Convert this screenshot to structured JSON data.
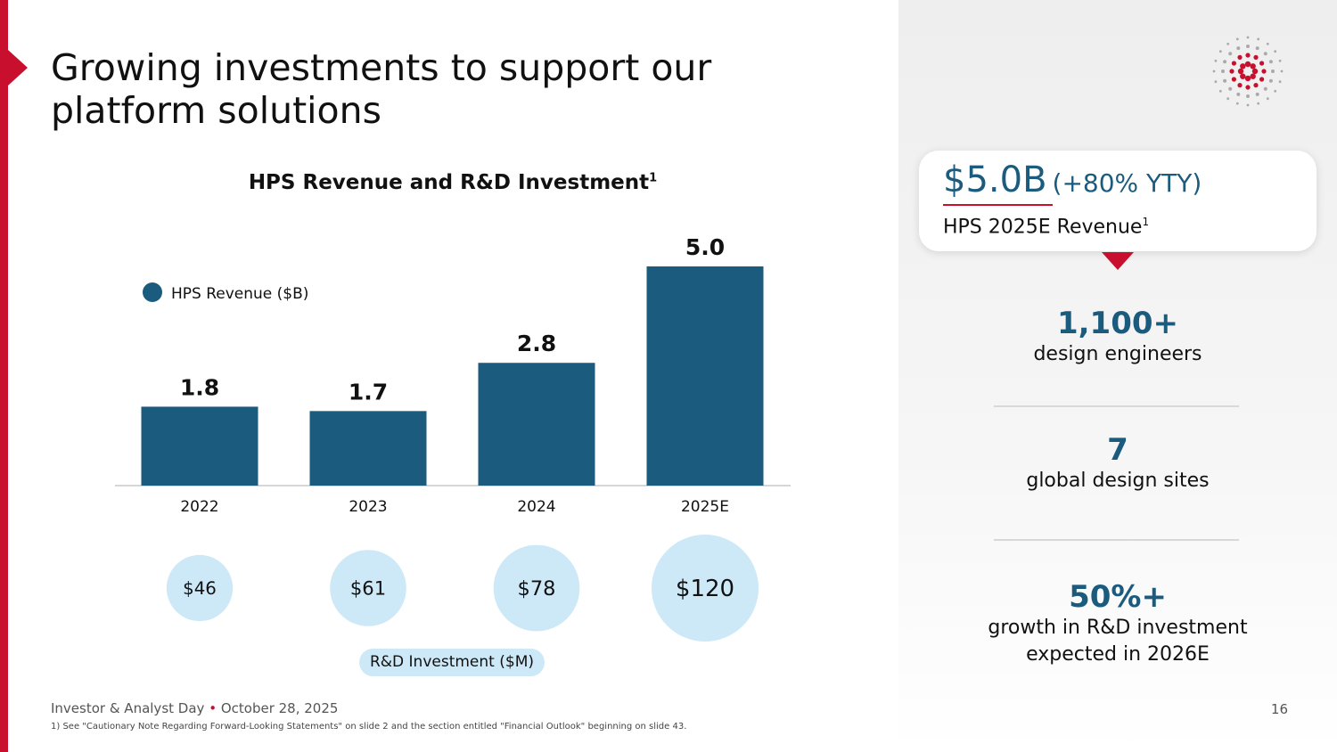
{
  "title": "Growing investments to support our platform solutions",
  "chart_data": {
    "type": "bar",
    "title": "HPS Revenue and R&D Investment",
    "title_footnote": "1",
    "categories": [
      "2022",
      "2023",
      "2024",
      "2025E"
    ],
    "series": [
      {
        "name": "HPS Revenue ($B)",
        "values": [
          1.8,
          1.7,
          2.8,
          5.0
        ],
        "labels": [
          "1.8",
          "1.7",
          "2.8",
          "5.0"
        ],
        "color": "#1b5b7e"
      },
      {
        "name": "R&D Investment ($M)",
        "values": [
          46,
          61,
          78,
          120
        ],
        "labels": [
          "$46",
          "$61",
          "$78",
          "$120"
        ],
        "color": "#cde9f7"
      }
    ],
    "legend": "top-left",
    "ylim": [
      0,
      5.0
    ]
  },
  "callout": {
    "value": "$5.0B",
    "change": "(+80% YTY)",
    "subtitle": "HPS 2025E Revenue",
    "footnote": "1"
  },
  "stats": [
    {
      "value": "1,100+",
      "label": "design engineers"
    },
    {
      "value": "7",
      "label": "global design sites"
    },
    {
      "value": "50%+",
      "label_line1": "growth in R&D investment",
      "label_line2": "expected in 2026E"
    }
  ],
  "footer": {
    "event": "Investor & Analyst Day",
    "separator": "•",
    "date": "October 28, 2025",
    "footnote": "1)  See \"Cautionary Note Regarding Forward-Looking Statements\" on slide 2 and the section entitled \"Financial Outlook\" beginning on slide 43.",
    "page_number": "16"
  },
  "colors": {
    "accent": "#c8102e",
    "bar": "#1b5b7e",
    "bubble": "#cde9f7"
  }
}
